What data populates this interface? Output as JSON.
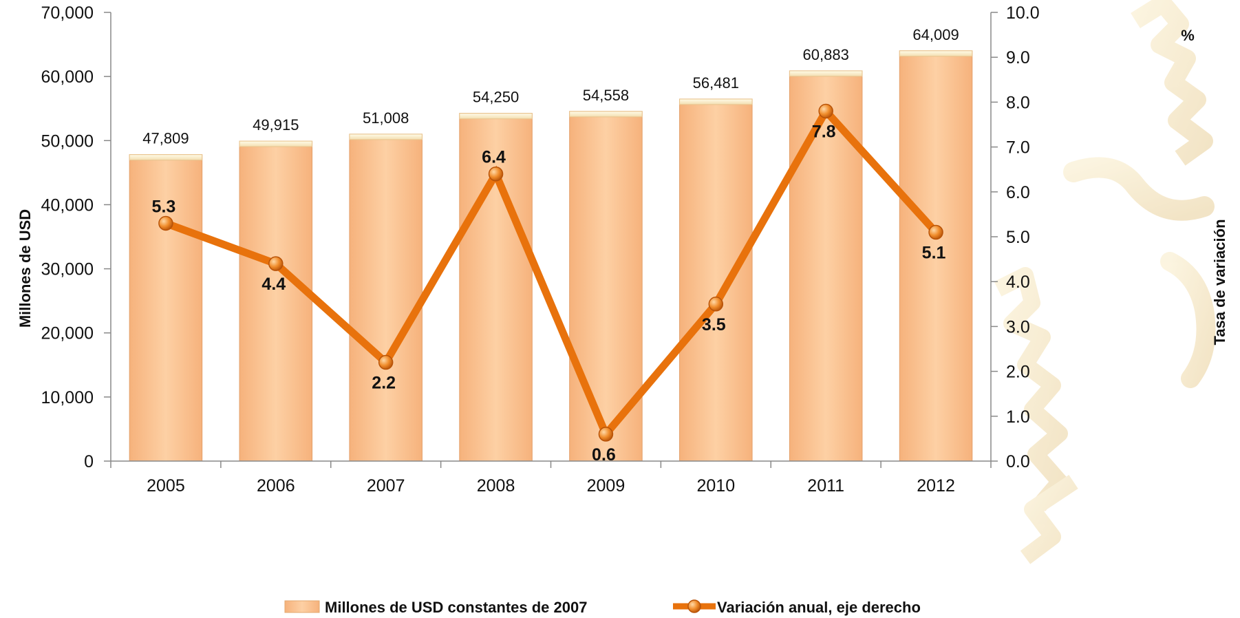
{
  "chart_data": {
    "type": "bar",
    "categories": [
      "2005",
      "2006",
      "2007",
      "2008",
      "2009",
      "2010",
      "2011",
      "2012"
    ],
    "series": [
      {
        "name": "Millones de USD constantes de 2007",
        "type": "bar",
        "axis": "left",
        "values": [
          47809,
          49915,
          51008,
          54250,
          54558,
          56481,
          60883,
          64009
        ],
        "labels": [
          "47,809",
          "49,915",
          "51,008",
          "54,250",
          "54,558",
          "56,481",
          "60,883",
          "64,009"
        ],
        "color": "#fbc896"
      },
      {
        "name": "Variación anual, eje derecho",
        "type": "line",
        "axis": "right",
        "values": [
          5.3,
          4.4,
          2.2,
          6.4,
          0.6,
          3.5,
          7.8,
          5.1
        ],
        "labels": [
          "5.3",
          "4.4",
          "2.2",
          "6.4",
          "0.6",
          "3.5",
          "7.8",
          "5.1"
        ],
        "color": "#e8720c"
      }
    ],
    "ylabel": "Millones de USD",
    "ylabel_right": "Tasa de variación",
    "ylabel_right_unit": "%",
    "ylim": [
      0,
      70000
    ],
    "ylim_right": [
      0,
      10
    ],
    "yticks": [
      "0",
      "10,000",
      "20,000",
      "30,000",
      "40,000",
      "50,000",
      "60,000",
      "70,000"
    ],
    "yticks_right": [
      "0.0",
      "1.0",
      "2.0",
      "3.0",
      "4.0",
      "5.0",
      "6.0",
      "7.0",
      "8.0",
      "9.0",
      "10.0"
    ],
    "grid": false,
    "legend": "bottom"
  }
}
